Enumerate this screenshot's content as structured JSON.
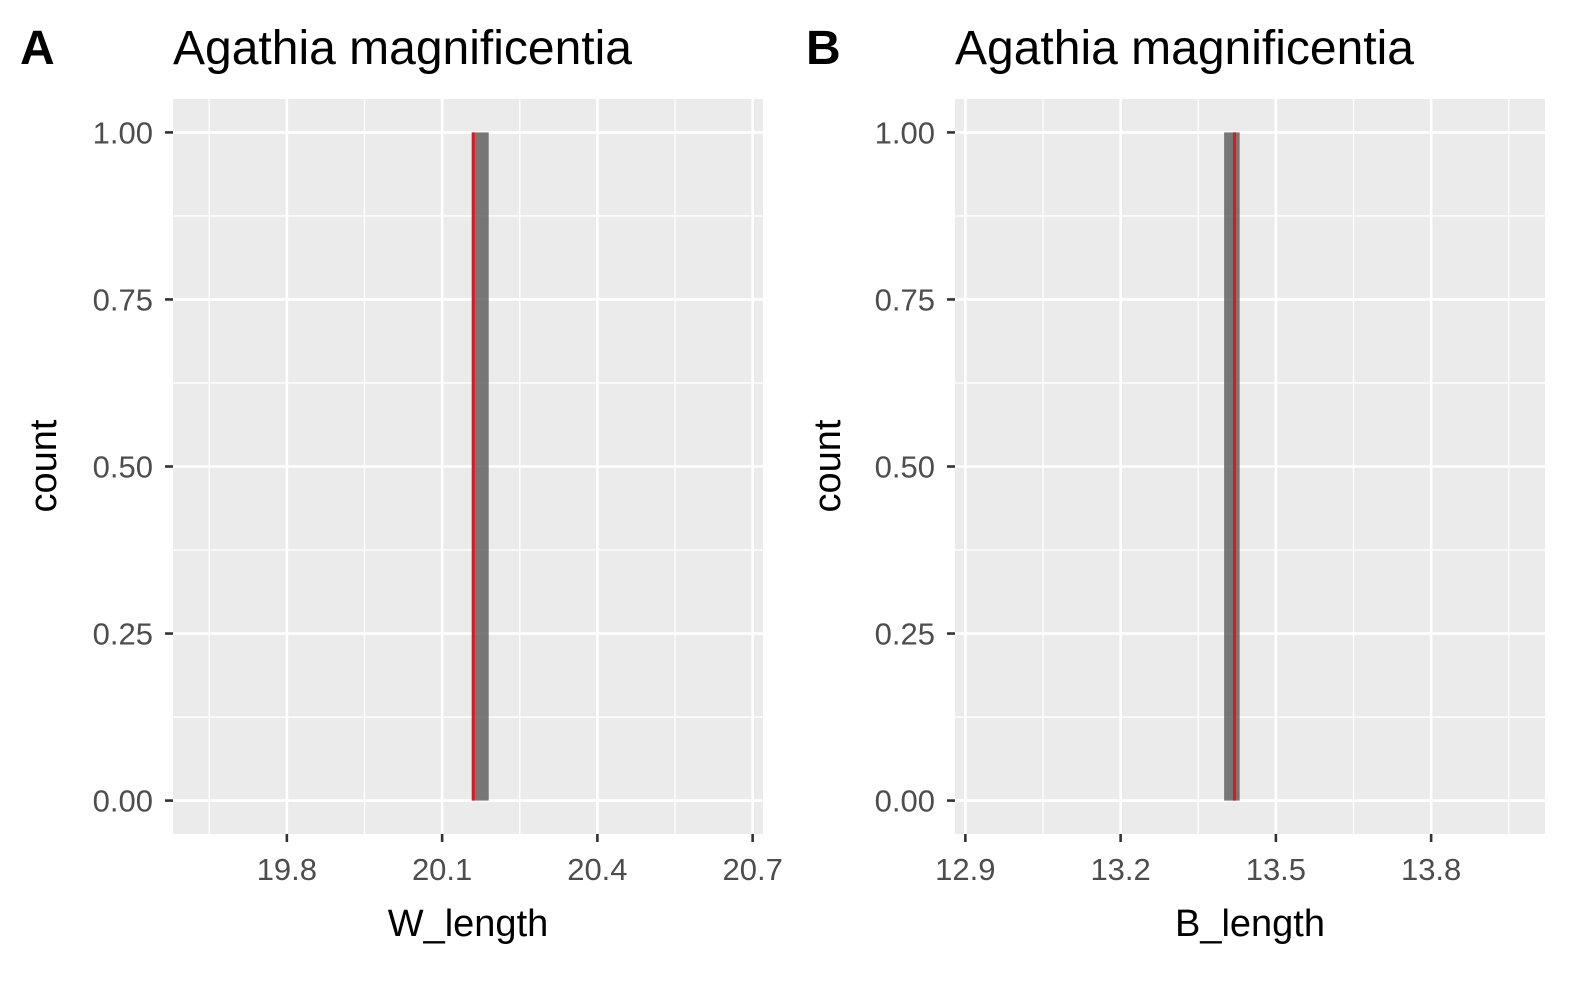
{
  "figure": {
    "panels": [
      {
        "tag": "A",
        "title": "Agathia magnificentia",
        "xlabel": "W_length",
        "ylabel": "count"
      },
      {
        "tag": "B",
        "title": "Agathia magnificentia",
        "xlabel": "B_length",
        "ylabel": "count"
      }
    ]
  },
  "colors": {
    "panel_background": "#ebebeb",
    "grid": "#ffffff",
    "bar_fill": "#595959",
    "reference_line": "#e8141c",
    "tick_label": "#4d4d4d",
    "tick_mark": "#333333"
  },
  "chart_data": [
    {
      "type": "bar",
      "subtype": "histogram",
      "title": "Agathia magnificentia",
      "panel_tag": "A",
      "xlabel": "W_length",
      "ylabel": "count",
      "xlim": [
        19.58,
        20.72
      ],
      "ylim": [
        -0.05,
        1.05
      ],
      "x_ticks": [
        19.8,
        20.1,
        20.4,
        20.7
      ],
      "x_tick_labels": [
        "19.8",
        "20.1",
        "20.4",
        "20.7"
      ],
      "y_ticks": [
        0,
        0.25,
        0.5,
        0.75,
        1
      ],
      "y_tick_labels": [
        "0.00",
        "0.25",
        "0.50",
        "0.75",
        "1.00"
      ],
      "bars": [
        {
          "xmin": 20.16,
          "xmax": 20.19,
          "count": 1
        }
      ],
      "reference_line": {
        "x": 20.16,
        "color": "red",
        "ymin": 0,
        "ymax": 1
      },
      "grid": true
    },
    {
      "type": "bar",
      "subtype": "histogram",
      "title": "Agathia magnificentia",
      "panel_tag": "B",
      "xlabel": "B_length",
      "ylabel": "count",
      "xlim": [
        12.88,
        14.02
      ],
      "ylim": [
        -0.05,
        1.05
      ],
      "x_ticks": [
        12.9,
        13.2,
        13.5,
        13.8
      ],
      "x_tick_labels": [
        "12.9",
        "13.2",
        "13.5",
        "13.8"
      ],
      "y_ticks": [
        0,
        0.25,
        0.5,
        0.75,
        1
      ],
      "y_tick_labels": [
        "0.00",
        "0.25",
        "0.50",
        "0.75",
        "1.00"
      ],
      "bars": [
        {
          "xmin": 13.4,
          "xmax": 13.43,
          "count": 1
        }
      ],
      "reference_line": {
        "x": 13.42,
        "color": "red",
        "ymin": 0,
        "ymax": 1
      },
      "grid": true
    }
  ]
}
